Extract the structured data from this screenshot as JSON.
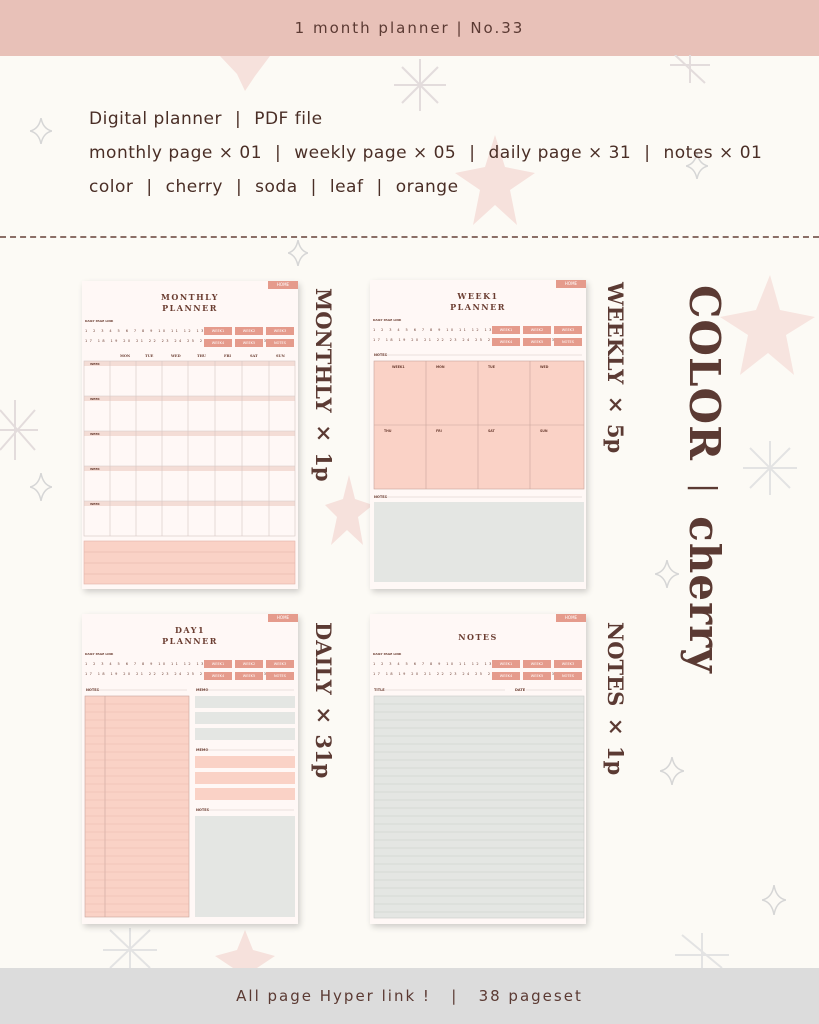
{
  "header": {
    "title": "1 month planner  |  No.33"
  },
  "info": {
    "line1": [
      "Digital planner",
      "PDF file"
    ],
    "line2": [
      "monthly page × 01",
      "weekly page × 05",
      "daily page × 31",
      "notes × 01"
    ],
    "line3": [
      "color",
      "cherry",
      "soda",
      "leaf",
      "orange"
    ]
  },
  "cards": {
    "monthly": {
      "title_l1": "MONTHLY",
      "title_l2": "PLANNER",
      "days": [
        "MON",
        "TUE",
        "WED",
        "THU",
        "FRI",
        "SAT",
        "SUN"
      ],
      "label": "MONTHLY × 1p"
    },
    "weekly": {
      "title_l1": "WEEK1",
      "title_l2": "PLANNER",
      "days_top": [
        "WEEK1",
        "MON",
        "TUE",
        "WED"
      ],
      "days_bottom": [
        "THU",
        "FRI",
        "SAT",
        "SUN"
      ],
      "label": "WEEKLY × 5p"
    },
    "daily": {
      "title_l1": "DAY1",
      "title_l2": "PLANNER",
      "label": "DAILY × 31p"
    },
    "notes": {
      "title_l1": "NOTES",
      "label": "NOTES × 1p"
    }
  },
  "common": {
    "home": "HOME",
    "page_link": "DAILY PAGE LINK",
    "nums_row1": "1 2 3 4 5 6 7 8 9 10 11 12 13 14 15 16",
    "nums_row2": "17 18 19 20 21 22 23 24 25 26 27 28 29 30 31",
    "week_buttons": [
      "WEEK1",
      "WEEK2",
      "WEEK3",
      "WEEK4",
      "WEEK5",
      "NOTES"
    ],
    "notes_label": "NOTES",
    "memo_label": "MEMO",
    "title_label": "TITLE",
    "date_label": "DATE",
    "week_label": "WEEK"
  },
  "color_label": {
    "word": "COLOR",
    "sep": "|",
    "name": "cherry"
  },
  "footer": {
    "text": "All page Hyper link !   |   38 pageset"
  },
  "colors": {
    "pink": "#e59b8c",
    "light_pink": "#fad9d0",
    "gray": "#e4e6e3",
    "brown": "#5b3a33"
  }
}
